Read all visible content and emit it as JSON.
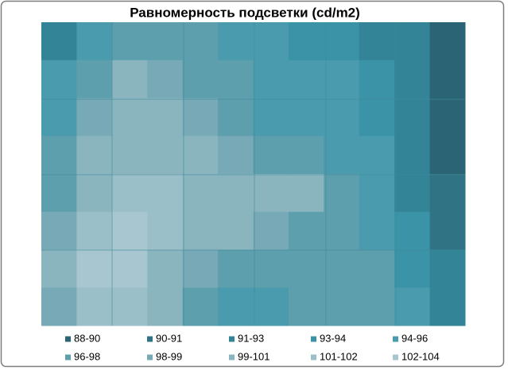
{
  "chart_data": {
    "type": "contour",
    "title": "Равномерность подсветки (cd/m2)",
    "z": [
      [
        92,
        95,
        97,
        97,
        96,
        95,
        94,
        93,
        93,
        92,
        91,
        89
      ],
      [
        94,
        97,
        99,
        98,
        97,
        96,
        95,
        94,
        94,
        93,
        91,
        89
      ],
      [
        95,
        98,
        99,
        99,
        98,
        97,
        95,
        95,
        94,
        93,
        91,
        89
      ],
      [
        96,
        99,
        100,
        100,
        99,
        98,
        97,
        96,
        95,
        94,
        92,
        89
      ],
      [
        97,
        100,
        101,
        101,
        100,
        99,
        99,
        99,
        97,
        95,
        92,
        90
      ],
      [
        98,
        101,
        102,
        101,
        100,
        99,
        98,
        97,
        96,
        95,
        93,
        90
      ],
      [
        99,
        102,
        102,
        100,
        98,
        97,
        97,
        97,
        97,
        96,
        93,
        91
      ],
      [
        98,
        101,
        101,
        99,
        97,
        95,
        94,
        96,
        97,
        96,
        94,
        91
      ]
    ],
    "bands": [
      {
        "label": "88-90",
        "min": 88,
        "max": 90,
        "color": "#2b6474"
      },
      {
        "label": "90-91",
        "min": 90,
        "max": 91,
        "color": "#2f7385"
      },
      {
        "label": "91-93",
        "min": 91,
        "max": 93,
        "color": "#348497"
      },
      {
        "label": "93-94",
        "min": 93,
        "max": 94,
        "color": "#3a93a6"
      },
      {
        "label": "94-96",
        "min": 94,
        "max": 96,
        "color": "#4a9bad"
      },
      {
        "label": "96-98",
        "min": 96,
        "max": 98,
        "color": "#5e9fad"
      },
      {
        "label": "98-99",
        "min": 98,
        "max": 99,
        "color": "#77aab6"
      },
      {
        "label": "99-101",
        "min": 99,
        "max": 101,
        "color": "#8ab5bf"
      },
      {
        "label": "101-102",
        "min": 101,
        "max": 102,
        "color": "#9bbfc8"
      },
      {
        "label": "102-104",
        "min": 102,
        "max": 104,
        "color": "#a8c6cf"
      }
    ]
  }
}
